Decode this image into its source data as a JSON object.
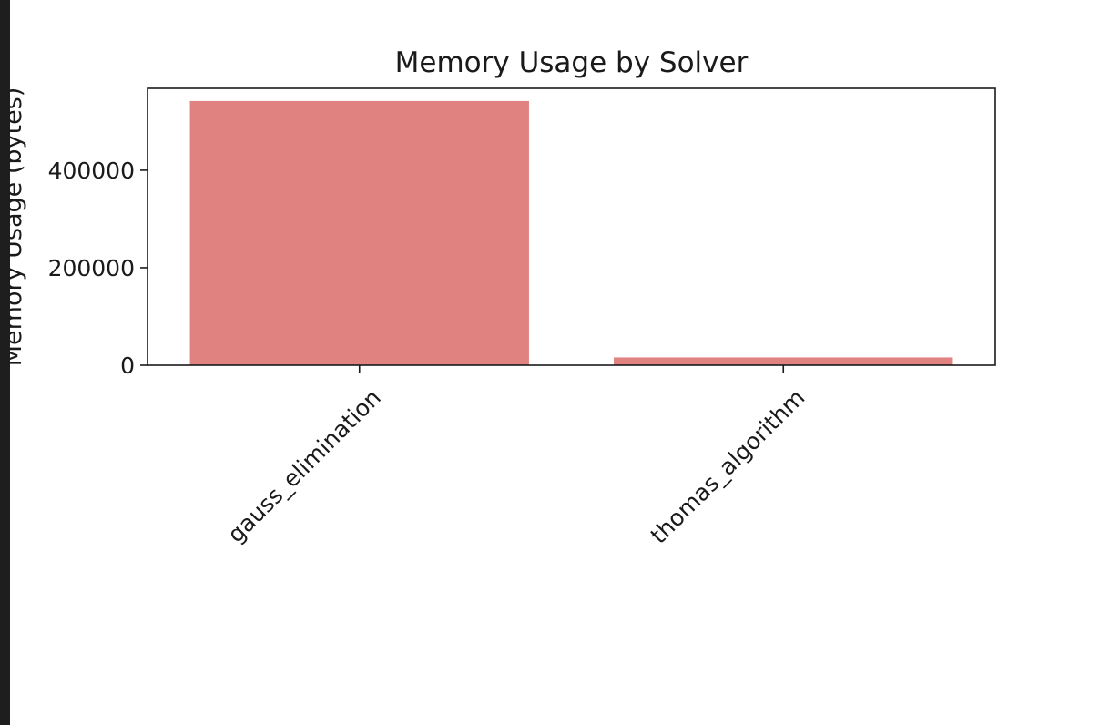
{
  "chart_data": {
    "type": "bar",
    "title": "Memory Usage by Solver",
    "xlabel": "",
    "ylabel": "Memory Usage (bytes)",
    "categories": [
      "gauss_elimination",
      "thomas_algorithm"
    ],
    "values": [
      542000,
      16000
    ],
    "ylim": [
      0,
      568000
    ],
    "yticks": [
      0,
      200000,
      400000
    ],
    "ytick_labels": [
      "0",
      "200000",
      "400000"
    ],
    "bar_color": "#e08380",
    "grid": false,
    "legend": "none",
    "xtick_rotation": -45
  }
}
